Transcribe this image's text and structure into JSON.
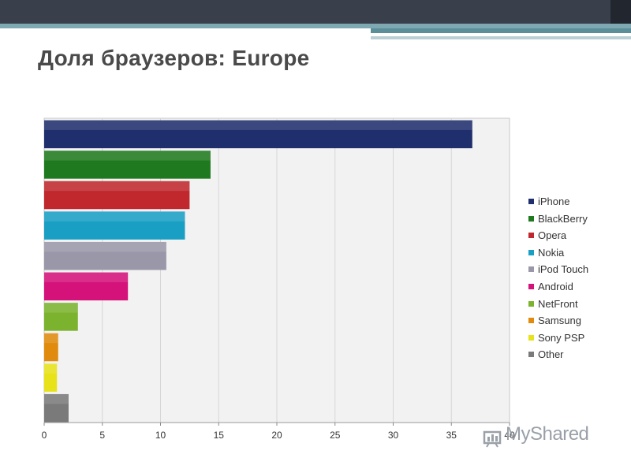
{
  "slide": {
    "title": "Доля браузеров: Europe"
  },
  "watermark": {
    "text": "MyShared",
    "color": "#9aa0a8"
  },
  "chart_data": {
    "type": "bar",
    "orientation": "horizontal",
    "categories": [
      "iPhone",
      "BlackBerry",
      "Opera",
      "Nokia",
      "iPod Touch",
      "Android",
      "NetFront",
      "Samsung",
      "Sony PSP",
      "Other"
    ],
    "values": [
      36.8,
      14.3,
      12.5,
      12.1,
      10.5,
      7.2,
      2.9,
      1.2,
      1.1,
      2.1
    ],
    "colors": [
      "#1f2f6e",
      "#1f7a1f",
      "#c0282d",
      "#1a9fc4",
      "#9a98a8",
      "#d4127a",
      "#7cb32e",
      "#e08a0e",
      "#e8e21a",
      "#7a7a7a"
    ],
    "xlim": [
      0,
      40
    ],
    "xticks": [
      0,
      5,
      10,
      15,
      20,
      25,
      30,
      35,
      40
    ],
    "xlabel": "",
    "ylabel": "",
    "grid": true,
    "legend_position": "right"
  }
}
